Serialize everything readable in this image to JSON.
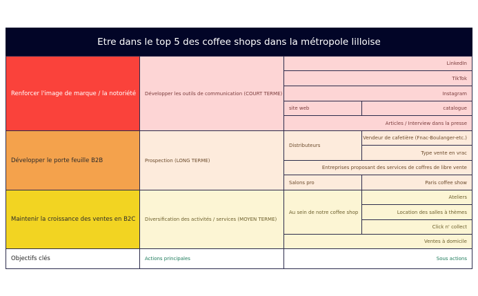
{
  "title": "Etre dans le top 5 des coffee shops dans la métropole lilloise",
  "colors": {
    "header": "#020527",
    "objective_1": "#fa423b",
    "objective_2": "#f4a24c",
    "objective_3": "#f2d422"
  },
  "objectives": [
    {
      "label": "Renforcer l'image de marque / la notoriété",
      "action": "Développer les outils de communication (COURT TERME)"
    },
    {
      "label": "Développer le porte feuille B2B",
      "action": "Prospection (LONG TERME)"
    },
    {
      "label": "Maintenir la croissance des ventes en B2C",
      "action": "Diversification des activités / services (MOYEN TERME)"
    }
  ],
  "sub": {
    "linkedin": "LinkedIn",
    "tiktok": "TikTok",
    "instagram": "Instagram",
    "site_web": "site web",
    "catalogue": "catalogue",
    "presse": "Articles / Interview dans la presse",
    "distributeurs": "Distributeurs",
    "vendeur": "Vendeur de cafetière (Fnac-Boulanger-etc.)",
    "vrac": "Type vente en vrac",
    "entreprises": "Entreprises proposant des services de coffres de libre vente",
    "salons": "Salons pro",
    "paris": "Paris coffee show",
    "sein": "Au sein de notre coffee shop",
    "ateliers": "Ateliers",
    "location": "Location des salles à thèmes",
    "click": "Click n' collect",
    "domicile": "Ventes à domicile"
  },
  "footer": {
    "objectifs": "Objectifs clés",
    "actions": "Actions  principales",
    "sous_actions": "Sous actions"
  }
}
